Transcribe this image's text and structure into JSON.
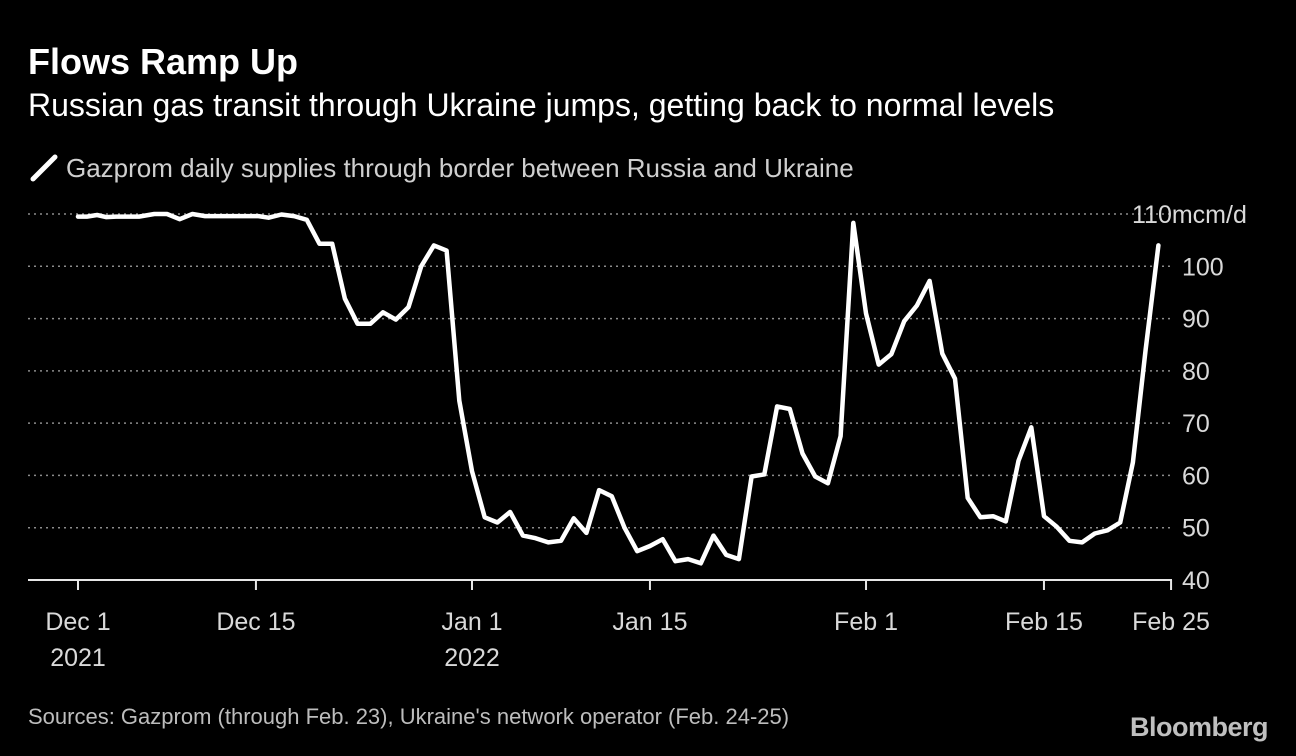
{
  "colors": {
    "background": "#000000",
    "line": "#ffffff",
    "grid": "#8c8c8c",
    "text": "#ffffff",
    "muted": "#bdbdbd"
  },
  "chart_data": {
    "type": "line",
    "title": "Flows Ramp Up",
    "subtitle": "Russian gas transit through Ukraine jumps, getting back to normal levels",
    "xlabel": "",
    "ylabel": "",
    "ylim": [
      40,
      110
    ],
    "yticks": [
      40,
      50,
      60,
      70,
      80,
      90,
      100,
      110
    ],
    "y_unit": "mcm/d",
    "grid": true,
    "legend": "top-left",
    "x_ticks": [
      {
        "day": 0,
        "line1": "Dec 1",
        "line2": "2021"
      },
      {
        "day": 14,
        "line1": "Dec 15",
        "line2": ""
      },
      {
        "day": 31,
        "line1": "Jan 1",
        "line2": "2022"
      },
      {
        "day": 45,
        "line1": "Jan 15",
        "line2": ""
      },
      {
        "day": 62,
        "line1": "Feb 1",
        "line2": ""
      },
      {
        "day": 76,
        "line1": "Feb 15",
        "line2": ""
      },
      {
        "day": 86,
        "line1": "Feb 25",
        "line2": ""
      }
    ],
    "series": [
      {
        "name": "Gazprom daily supplies through border between Russia and Ukraine",
        "color": "#ffffff",
        "points": [
          [
            0,
            109.5
          ],
          [
            0.7,
            109.5
          ],
          [
            1.5,
            109.8
          ],
          [
            2.2,
            109.4
          ],
          [
            3,
            109.5
          ],
          [
            4.8,
            109.5
          ],
          [
            6,
            110
          ],
          [
            7,
            110
          ],
          [
            8,
            109
          ],
          [
            9,
            110
          ],
          [
            10,
            109.6
          ],
          [
            11,
            109.6
          ],
          [
            12,
            109.6
          ],
          [
            13,
            109.6
          ],
          [
            14.2,
            109.6
          ],
          [
            15,
            109.3
          ],
          [
            16,
            109.9
          ],
          [
            17,
            109.6
          ],
          [
            18,
            108.9
          ],
          [
            19,
            104.3
          ],
          [
            20,
            104.3
          ],
          [
            21,
            93.8
          ],
          [
            22,
            89
          ],
          [
            23,
            89
          ],
          [
            24,
            91.2
          ],
          [
            25,
            89.8
          ],
          [
            26,
            92.2
          ],
          [
            27,
            100
          ],
          [
            28,
            104
          ],
          [
            29,
            103
          ],
          [
            30,
            74.3
          ],
          [
            31,
            60.8
          ],
          [
            32,
            52
          ],
          [
            33,
            51
          ],
          [
            34,
            53
          ],
          [
            35,
            48.5
          ],
          [
            36,
            48
          ],
          [
            37,
            47.2
          ],
          [
            38,
            47.5
          ],
          [
            39,
            51.8
          ],
          [
            40,
            49
          ],
          [
            41,
            57.2
          ],
          [
            42,
            56
          ],
          [
            43,
            50
          ],
          [
            44,
            45.5
          ],
          [
            45,
            46.5
          ],
          [
            46,
            47.8
          ],
          [
            47,
            43.6
          ],
          [
            48,
            44
          ],
          [
            49,
            43.2
          ],
          [
            50,
            48.5
          ],
          [
            51,
            44.8
          ],
          [
            52,
            44
          ],
          [
            53,
            59.8
          ],
          [
            54,
            60.2
          ],
          [
            55,
            73.2
          ],
          [
            56,
            72.7
          ],
          [
            57,
            64.2
          ],
          [
            58,
            59.8
          ],
          [
            59,
            58.5
          ],
          [
            60,
            67.5
          ],
          [
            61,
            108.3
          ],
          [
            62,
            91
          ],
          [
            63,
            81.2
          ],
          [
            64,
            83.2
          ],
          [
            65,
            89.5
          ],
          [
            66,
            92.5
          ],
          [
            67,
            97.2
          ],
          [
            68,
            83.3
          ],
          [
            69,
            78.5
          ],
          [
            70,
            55.7
          ],
          [
            71,
            52
          ],
          [
            72,
            52.2
          ],
          [
            73,
            51.2
          ],
          [
            74,
            62.8
          ],
          [
            75,
            69.2
          ],
          [
            76,
            52.2
          ],
          [
            77,
            50.2
          ],
          [
            78,
            47.5
          ],
          [
            79,
            47.2
          ],
          [
            80,
            48.9
          ],
          [
            81,
            49.5
          ],
          [
            82,
            51
          ],
          [
            83,
            62.5
          ],
          [
            84,
            84
          ],
          [
            85,
            104
          ]
        ]
      }
    ],
    "source": "Sources: Gazprom (through Feb. 23), Ukraine's network operator (Feb. 24-25)"
  },
  "brand": "Bloomberg"
}
